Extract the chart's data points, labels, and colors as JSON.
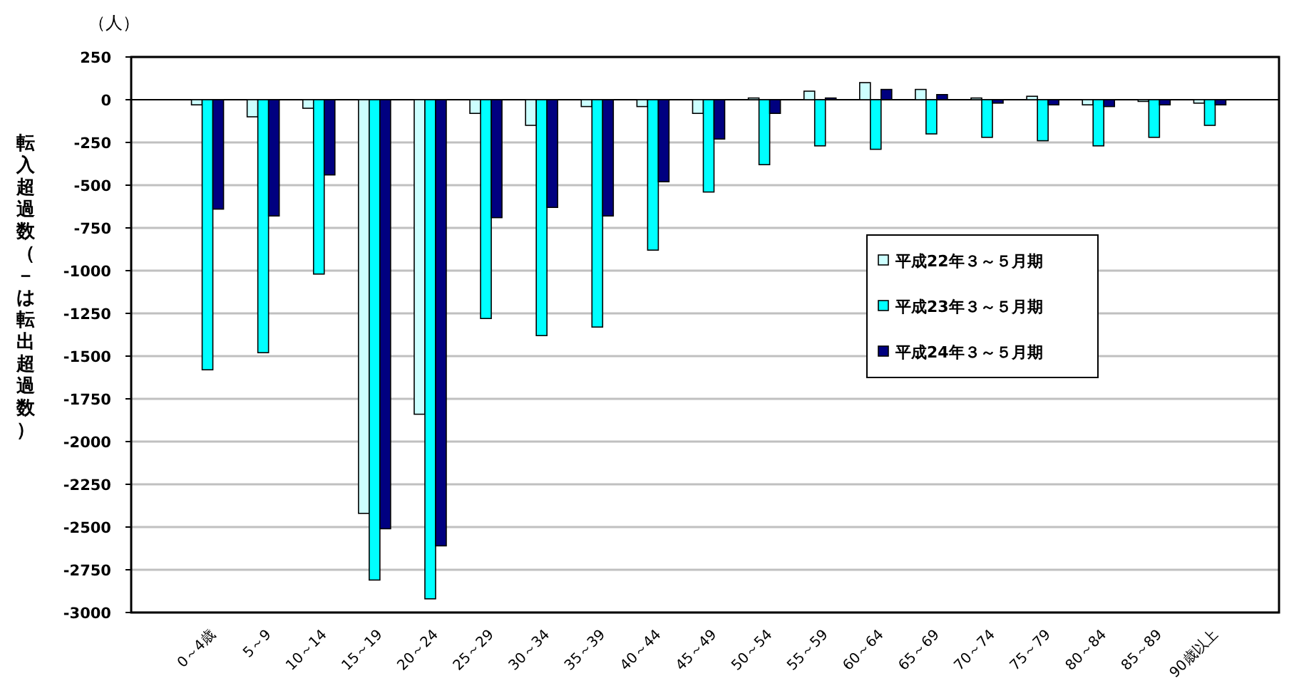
{
  "chart_data": {
    "type": "bar",
    "ylabel": "転入超過数（－は転出超過数）",
    "annotations": [
      "（人）"
    ],
    "categories": [
      "0～4歳",
      "5～9",
      "10～14",
      "15～19",
      "20～24",
      "25～29",
      "30～34",
      "35～39",
      "40～44",
      "45～49",
      "50～54",
      "55～59",
      "60～64",
      "65～69",
      "70～74",
      "75～79",
      "80～84",
      "85～89",
      "90歳以上"
    ],
    "series": [
      {
        "name": "平成22年３～５月期",
        "color": "#ccffff",
        "values": [
          -30,
          -100,
          -50,
          -2420,
          -1840,
          -80,
          -150,
          -40,
          -40,
          -80,
          10,
          50,
          100,
          60,
          10,
          20,
          -30,
          -10,
          -20
        ]
      },
      {
        "name": "平成23年３～５月期",
        "color": "#00ffff",
        "values": [
          -1580,
          -1480,
          -1020,
          -2810,
          -2920,
          -1280,
          -1380,
          -1330,
          -880,
          -540,
          -380,
          -270,
          -290,
          -200,
          -220,
          -240,
          -270,
          -220,
          -150
        ]
      },
      {
        "name": "平成24年３～５月期",
        "color": "#000080",
        "values": [
          -640,
          -680,
          -440,
          -2510,
          -2610,
          -690,
          -630,
          -680,
          -480,
          -230,
          -80,
          10,
          60,
          30,
          -20,
          -30,
          -40,
          -30,
          -30
        ]
      }
    ],
    "ylim": [
      -3000,
      250
    ],
    "yticks": [
      -3000,
      -2750,
      -2500,
      -2250,
      -2000,
      -1750,
      -1500,
      -1250,
      -1000,
      -750,
      -500,
      -250,
      0,
      250
    ],
    "grid": "y",
    "legend": "right"
  }
}
